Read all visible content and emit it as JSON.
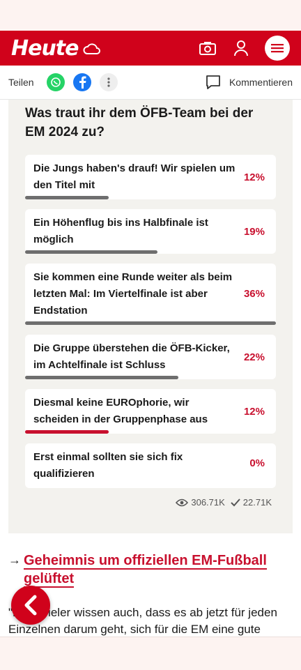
{
  "header": {
    "logo": "Heute"
  },
  "sharebar": {
    "share_label": "Teilen",
    "comment_label": "Kommentieren"
  },
  "poll": {
    "question": "Was traut ihr dem ÖFB-Team bei der EM 2024 zu?",
    "options": [
      {
        "text": "Die Jungs haben's drauf! Wir spielen um den Titel mit",
        "percent": "12%",
        "share": 0.12
      },
      {
        "text": "Ein Höhenflug bis ins Halbfinale ist möglich",
        "percent": "19%",
        "share": 0.19
      },
      {
        "text": "Sie kommen eine Runde weiter als beim letzten Mal: Im Viertelfinale ist aber Endstation",
        "percent": "36%",
        "share": 0.36
      },
      {
        "text": "Die Gruppe überstehen die ÖFB-Kicker, im Achtelfinale ist Schluss",
        "percent": "22%",
        "share": 0.22
      },
      {
        "text": "Diesmal keine EUROphorie, wir scheiden in der Gruppenphase aus",
        "percent": "12%",
        "share": 0.12,
        "selected": true
      },
      {
        "text": "Erst einmal sollten sie sich fix qualifizieren",
        "percent": "0%",
        "share": 0
      }
    ],
    "views": "306.71K",
    "votes": "22.71K"
  },
  "article": {
    "link_title": "Geheimnis um offiziellen EM-Fußball gelüftet",
    "body": "\"Die Spieler wissen auch, dass es ab jetzt für jeden Einzelnen darum geht, sich für die EM eine gute"
  },
  "colors": {
    "brand": "#d0021b",
    "percent": "#c8102e",
    "bar": "#6e6e6e"
  }
}
